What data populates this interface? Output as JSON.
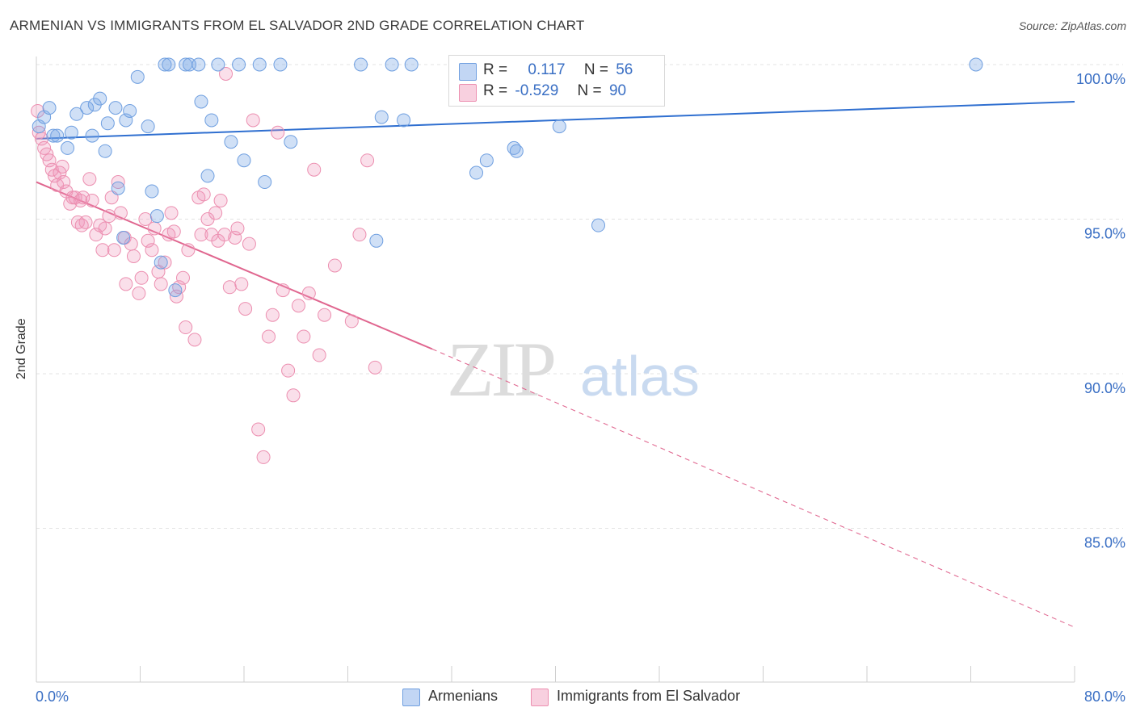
{
  "header": {
    "title": "ARMENIAN VS IMMIGRANTS FROM EL SALVADOR 2ND GRADE CORRELATION CHART",
    "source": "Source: ZipAtlas.com"
  },
  "watermark": {
    "zip": "ZIP",
    "atlas": "atlas"
  },
  "legend_box": {
    "rows": [
      {
        "r_label": "R =",
        "r_value": "0.117",
        "n_label": "N =",
        "n_value": "56"
      },
      {
        "r_label": "R =",
        "r_value": "-0.529",
        "n_label": "N =",
        "n_value": "90"
      }
    ]
  },
  "bottom_legend": [
    "Armenians",
    "Immigrants from El Salvador"
  ],
  "colors": {
    "blue": "#6f9fe0",
    "blue_fill": "rgba(120,165,230,0.35)",
    "blue_line": "#2f6fd0",
    "pink": "#ec8fb0",
    "pink_fill": "rgba(240,150,185,0.30)",
    "pink_line": "#e0668f",
    "grid": "#e3e3e3",
    "axis_text": "#3a6fc4"
  },
  "chart_data": {
    "type": "scatter",
    "title": "ARMENIAN VS IMMIGRANTS FROM EL SALVADOR 2ND GRADE CORRELATION CHART",
    "xlabel": "",
    "ylabel": "2nd Grade",
    "xlim": [
      0,
      80
    ],
    "ylim": [
      80.5,
      101
    ],
    "x_tick_labels": [
      "0.0%",
      "80.0%"
    ],
    "y_ticks": [
      85,
      90,
      95,
      100
    ],
    "y_tick_labels": [
      "85.0%",
      "90.0%",
      "95.0%",
      "100.0%"
    ],
    "grid": true,
    "series": [
      {
        "name": "Armenians",
        "r": 0.117,
        "n": 56,
        "trend": {
          "x": [
            0,
            80
          ],
          "y": [
            97.6,
            98.8
          ]
        },
        "points": [
          [
            0.2,
            98.0
          ],
          [
            0.6,
            98.3
          ],
          [
            1.0,
            98.6
          ],
          [
            1.3,
            97.7
          ],
          [
            1.6,
            97.7
          ],
          [
            2.4,
            97.3
          ],
          [
            2.7,
            97.8
          ],
          [
            3.1,
            98.4
          ],
          [
            3.9,
            98.6
          ],
          [
            4.5,
            98.7
          ],
          [
            4.9,
            98.9
          ],
          [
            4.3,
            97.7
          ],
          [
            5.3,
            97.2
          ],
          [
            5.5,
            98.1
          ],
          [
            6.1,
            98.6
          ],
          [
            6.3,
            96.0
          ],
          [
            6.7,
            94.4
          ],
          [
            6.9,
            98.2
          ],
          [
            7.2,
            98.5
          ],
          [
            7.8,
            99.6
          ],
          [
            8.6,
            98.0
          ],
          [
            8.9,
            95.9
          ],
          [
            9.3,
            95.1
          ],
          [
            9.6,
            93.6
          ],
          [
            9.9,
            100.0
          ],
          [
            10.2,
            100.0
          ],
          [
            10.7,
            92.7
          ],
          [
            11.5,
            100.0
          ],
          [
            11.8,
            100.0
          ],
          [
            12.5,
            100.0
          ],
          [
            12.7,
            98.8
          ],
          [
            13.2,
            96.4
          ],
          [
            13.5,
            98.2
          ],
          [
            14.0,
            100.0
          ],
          [
            15.0,
            97.5
          ],
          [
            15.6,
            100.0
          ],
          [
            16.0,
            96.9
          ],
          [
            17.2,
            100.0
          ],
          [
            17.6,
            96.2
          ],
          [
            18.8,
            100.0
          ],
          [
            19.6,
            97.5
          ],
          [
            25.0,
            100.0
          ],
          [
            26.2,
            94.3
          ],
          [
            26.6,
            98.3
          ],
          [
            27.4,
            100.0
          ],
          [
            28.3,
            98.2
          ],
          [
            28.9,
            100.0
          ],
          [
            32.9,
            100.0
          ],
          [
            33.9,
            96.5
          ],
          [
            34.7,
            96.9
          ],
          [
            36.8,
            97.3
          ],
          [
            37.0,
            97.2
          ],
          [
            38.5,
            99.5
          ],
          [
            40.3,
            98.0
          ],
          [
            43.3,
            94.8
          ],
          [
            72.4,
            100.0
          ]
        ]
      },
      {
        "name": "Immigrants from El Salvador",
        "r": -0.529,
        "n": 90,
        "trend": {
          "x": [
            0,
            30.5
          ],
          "y": [
            96.2,
            90.8
          ]
        },
        "trend_dashed": {
          "x": [
            30.5,
            80
          ],
          "y": [
            90.8,
            81.8
          ]
        },
        "points": [
          [
            0.1,
            98.5
          ],
          [
            0.2,
            97.8
          ],
          [
            0.4,
            97.6
          ],
          [
            0.6,
            97.3
          ],
          [
            0.8,
            97.1
          ],
          [
            1.0,
            96.9
          ],
          [
            1.2,
            96.6
          ],
          [
            1.4,
            96.4
          ],
          [
            1.6,
            96.1
          ],
          [
            1.8,
            96.5
          ],
          [
            2.0,
            96.7
          ],
          [
            2.1,
            96.2
          ],
          [
            2.3,
            95.9
          ],
          [
            2.6,
            95.5
          ],
          [
            2.8,
            95.7
          ],
          [
            3.0,
            95.7
          ],
          [
            3.2,
            94.9
          ],
          [
            3.4,
            95.6
          ],
          [
            3.6,
            95.7
          ],
          [
            3.8,
            94.9
          ],
          [
            4.1,
            96.3
          ],
          [
            4.3,
            95.6
          ],
          [
            4.6,
            94.5
          ],
          [
            4.9,
            94.8
          ],
          [
            5.1,
            94.0
          ],
          [
            5.3,
            94.7
          ],
          [
            5.6,
            95.1
          ],
          [
            5.8,
            95.7
          ],
          [
            6.0,
            94.0
          ],
          [
            6.3,
            96.2
          ],
          [
            6.5,
            95.2
          ],
          [
            6.8,
            94.4
          ],
          [
            6.9,
            92.9
          ],
          [
            7.3,
            94.2
          ],
          [
            7.5,
            93.8
          ],
          [
            7.9,
            92.6
          ],
          [
            8.1,
            93.1
          ],
          [
            8.4,
            95.0
          ],
          [
            8.6,
            94.3
          ],
          [
            8.9,
            94.0
          ],
          [
            9.1,
            94.7
          ],
          [
            9.4,
            93.3
          ],
          [
            9.6,
            92.9
          ],
          [
            9.9,
            93.6
          ],
          [
            10.2,
            94.5
          ],
          [
            10.4,
            95.2
          ],
          [
            10.6,
            94.6
          ],
          [
            10.8,
            92.5
          ],
          [
            11.0,
            92.8
          ],
          [
            11.3,
            93.1
          ],
          [
            11.5,
            91.5
          ],
          [
            11.7,
            94.0
          ],
          [
            12.2,
            91.1
          ],
          [
            12.5,
            95.7
          ],
          [
            12.7,
            94.5
          ],
          [
            12.9,
            95.8
          ],
          [
            13.2,
            95.0
          ],
          [
            13.5,
            94.5
          ],
          [
            13.8,
            95.2
          ],
          [
            14.0,
            94.3
          ],
          [
            14.2,
            95.6
          ],
          [
            14.5,
            94.5
          ],
          [
            14.6,
            99.7
          ],
          [
            14.9,
            92.8
          ],
          [
            15.3,
            94.4
          ],
          [
            15.5,
            94.7
          ],
          [
            15.8,
            92.9
          ],
          [
            16.1,
            92.1
          ],
          [
            16.4,
            94.2
          ],
          [
            16.7,
            98.2
          ],
          [
            17.1,
            88.2
          ],
          [
            17.5,
            87.3
          ],
          [
            17.9,
            91.2
          ],
          [
            18.2,
            91.9
          ],
          [
            18.6,
            97.8
          ],
          [
            19.0,
            92.7
          ],
          [
            19.4,
            90.1
          ],
          [
            19.8,
            89.3
          ],
          [
            20.2,
            92.2
          ],
          [
            20.6,
            91.2
          ],
          [
            21.0,
            92.6
          ],
          [
            21.4,
            96.6
          ],
          [
            21.8,
            90.6
          ],
          [
            22.2,
            91.9
          ],
          [
            23.0,
            93.5
          ],
          [
            24.3,
            91.7
          ],
          [
            24.9,
            94.5
          ],
          [
            25.5,
            96.9
          ],
          [
            26.1,
            90.2
          ],
          [
            3.5,
            94.8
          ]
        ]
      }
    ]
  }
}
